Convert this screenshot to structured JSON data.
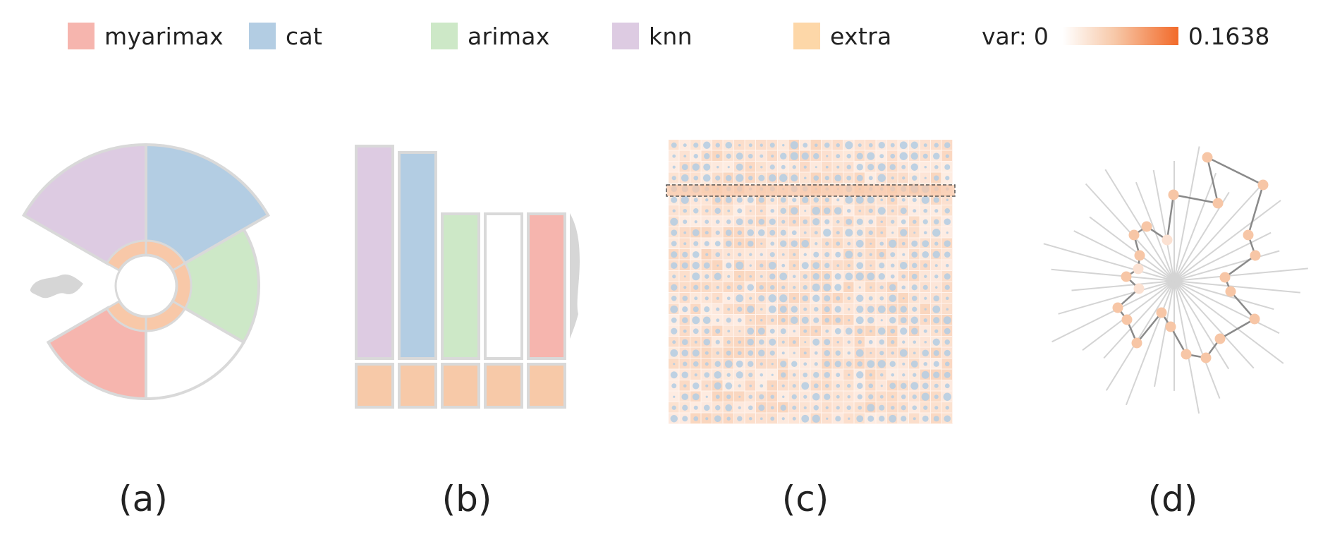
{
  "legend": {
    "items": [
      {
        "label": "myarimax",
        "color": "#f6b5ae"
      },
      {
        "label": "cat",
        "color": "#b3cde3"
      },
      {
        "label": "arimax",
        "color": "#cde8c7"
      },
      {
        "label": "knn",
        "color": "#ddcbe2"
      },
      {
        "label": "extra",
        "color": "#fdd7a8"
      }
    ],
    "var": {
      "prefix": "var:",
      "min": "0",
      "max": "0.1638",
      "color_low": "#ffffff",
      "color_high": "#f26a2a"
    }
  },
  "panels": {
    "a": {
      "caption": "(a)"
    },
    "b": {
      "caption": "(b)"
    },
    "c": {
      "caption": "(c)"
    },
    "d": {
      "caption": "(d)"
    }
  },
  "colors": {
    "stroke": "#d9d9d9",
    "inner_ring": "#f8c8a8",
    "bottom_cells": "#f7c9a8",
    "density": "#d6d6d6",
    "dot_blue": "#b3cde3",
    "cell_orange": "#f8c8a8",
    "spoke": "#d4d4d4",
    "path": "#8a8a8a",
    "node": "#f7c6a6"
  }
}
